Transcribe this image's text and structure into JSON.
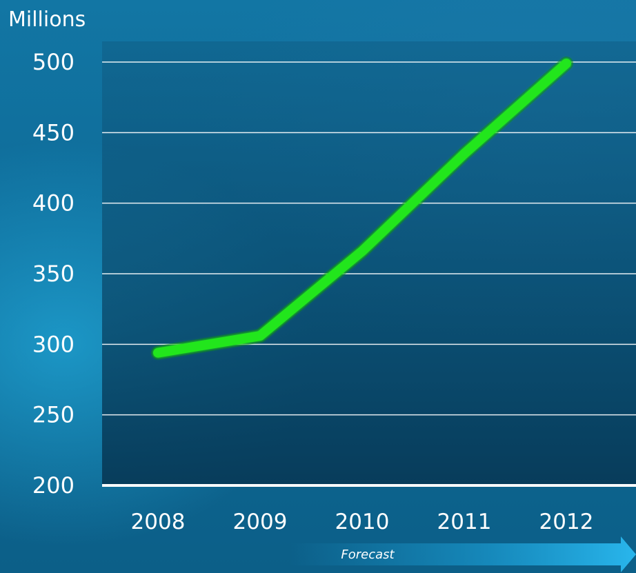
{
  "chart_data": {
    "type": "line",
    "ylabel": "Millions",
    "x": [
      "2008",
      "2009",
      "2010",
      "2011",
      "2012"
    ],
    "series": [
      {
        "values": [
          294,
          306,
          366,
          435,
          499
        ]
      }
    ],
    "ylim": [
      200,
      500
    ],
    "yticks": [
      200,
      250,
      300,
      350,
      400,
      450,
      500
    ],
    "grid": true,
    "annotation": "Forecast"
  },
  "colors": {
    "line": "#22e61e",
    "grid": "#ffffff",
    "plot_bg_top": "#0f5e86",
    "plot_bg_bottom": "#073a58",
    "arrow": "#1da6df"
  }
}
